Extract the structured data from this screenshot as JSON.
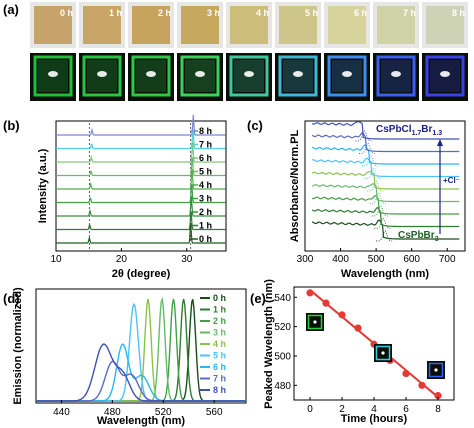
{
  "panels": {
    "a": {
      "label": "(a)",
      "time_labels": [
        "0 h",
        "1 h",
        "2 h",
        "3 h",
        "4 h",
        "5 h",
        "6 h",
        "7 h",
        "8 h"
      ],
      "daylight_colors": [
        "#c6a36a",
        "#c9a667",
        "#c7a45e",
        "#c6a95f",
        "#cdbd7a",
        "#cdc58a",
        "#d6d49c",
        "#d0d2a8",
        "#ced3b6"
      ],
      "uv_colors": [
        "#1fbf3a",
        "#26c43f",
        "#2ec847",
        "#3ad35a",
        "#3fc8a0",
        "#3fb7d8",
        "#3c8ef0",
        "#3a5ff0",
        "#3a40e8"
      ]
    },
    "b": {
      "label": "(b)",
      "chart_data": {
        "type": "line",
        "xlabel": "2θ (degree)",
        "ylabel": "Intensity (a.u.)",
        "xlim": [
          10,
          36
        ],
        "xticks": [
          "10",
          "20",
          "30"
        ],
        "dashed_lines_x": [
          15.1,
          30.6
        ],
        "series_labels": [
          "8 h",
          "7 h",
          "6 h",
          "5 h",
          "4 h",
          "3 h",
          "2 h",
          "1 h",
          "0 h"
        ],
        "peaks": [
          {
            "x": 15.1,
            "relative_height": 0.25
          },
          {
            "x": 30.6,
            "relative_height": 1.0
          }
        ],
        "peak_shift_per_hour": 0.05
      }
    },
    "c": {
      "label": "(c)",
      "chart_data": {
        "type": "line",
        "xlabel": "Wavelength (nm)",
        "ylabel": "Absorbance/Norm.PL",
        "xlim": [
          300,
          750
        ],
        "xticks": [
          "300",
          "400",
          "500",
          "600",
          "700"
        ],
        "top_label_main": "CsPbCl",
        "top_label_sub1": "1.7",
        "top_label_mid": "Br",
        "top_label_sub2": "1.3",
        "bottom_label_main": "CsPbBr",
        "bottom_label_sub": "3",
        "arrow_label": "+Cl⁻",
        "edge_nm": [
          520,
          515,
          508,
          502,
          495,
          488,
          480,
          472,
          462
        ]
      }
    },
    "d": {
      "label": "(d)",
      "chart_data": {
        "type": "line",
        "xlabel": "Wavelength (nm)",
        "ylabel": "Emission (normalized)",
        "xlim": [
          420,
          585
        ],
        "xticks": [
          "440",
          "480",
          "520",
          "560"
        ],
        "series": [
          {
            "name": "0 h",
            "peak": 543
          },
          {
            "name": "1 h",
            "peak": 536
          },
          {
            "name": "2 h",
            "peak": 528
          },
          {
            "name": "3 h",
            "peak": 519
          },
          {
            "name": "4 h",
            "peak": 508
          },
          {
            "name": "5 h",
            "peak": 497
          },
          {
            "name": "6 h",
            "peak": 488
          },
          {
            "name": "7 h",
            "peak": 480
          },
          {
            "name": "8 h",
            "peak": 473
          }
        ]
      }
    },
    "e": {
      "label": "(e)",
      "chart_data": {
        "type": "scatter",
        "xlabel": "Time (hours)",
        "ylabel": "Peaked Wavelength (nm)",
        "xlim": [
          -1,
          9
        ],
        "ylim": [
          470,
          547
        ],
        "xticks": [
          "0",
          "2",
          "4",
          "6",
          "8"
        ],
        "yticks": [
          "480",
          "500",
          "520",
          "540"
        ],
        "x": [
          0,
          1,
          2,
          3,
          4,
          5,
          6,
          7,
          8
        ],
        "y": [
          543,
          536,
          528,
          519,
          508,
          497,
          488,
          480,
          473
        ],
        "fit": [
          [
            0,
            545
          ],
          [
            8,
            472
          ]
        ]
      }
    }
  },
  "colors": {
    "green_series": [
      "#1b5e20",
      "#2e7d32",
      "#388e3c",
      "#43a047",
      "#4caf50",
      "#66bb6a",
      "#81c784",
      "#4dd0e1",
      "#7986cb"
    ],
    "pl_series": [
      "#1b4d1b",
      "#2e7d32",
      "#43a047",
      "#66bb6a",
      "#8bc34a",
      "#4fc3f7",
      "#29b6f6",
      "#5c6bc0",
      "#3f51b5"
    ],
    "fit_line": "#e53935",
    "label_blue": "#1a237e",
    "label_green": "#1b5e20"
  }
}
